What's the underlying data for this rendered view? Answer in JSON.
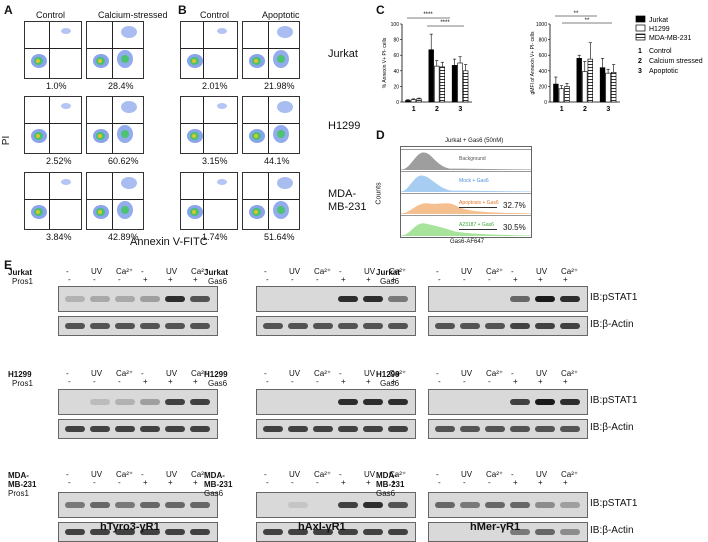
{
  "panel_letters": {
    "a": "A",
    "b": "B",
    "c": "C",
    "d": "D",
    "e": "E"
  },
  "panel_a": {
    "col_headers": [
      "Control",
      "Calcium-stressed"
    ],
    "percents": [
      [
        "1.0%",
        "28.4%"
      ],
      [
        "2.52%",
        "60.62%"
      ],
      [
        "3.84%",
        "42.89%"
      ]
    ]
  },
  "panel_b": {
    "col_headers": [
      "Control",
      "Apoptotic"
    ],
    "percents": [
      [
        "2.01%",
        "21.98%"
      ],
      [
        "3.15%",
        "44.1%"
      ],
      [
        "1.74%",
        "51.64%"
      ]
    ]
  },
  "cell_lines": [
    "Jurkat",
    "H1299",
    "MDA-\nMB-231"
  ],
  "axis": {
    "flow_y": "PI",
    "flow_x": "Annexin V-FITC"
  },
  "panel_c": {
    "left_ylabel": "% Annexin V+ PI- cells",
    "right_ylabel": "gMFI of Annexin V+ PI- cells",
    "sig_left": [
      "****",
      "****"
    ],
    "sig_right": [
      "**",
      "**"
    ],
    "legend": [
      {
        "name": "Jurkat",
        "color": "#000000"
      },
      {
        "name": "H1299",
        "color": "#ffffff"
      },
      {
        "name": "MDA-MB-231",
        "color": "#ffffff",
        "hatch": true
      }
    ],
    "conditions": [
      {
        "num": "1",
        "name": "Control"
      },
      {
        "num": "2",
        "name": "Calcium stressed"
      },
      {
        "num": "3",
        "name": "Apoptotic"
      }
    ]
  },
  "chart_data": [
    {
      "type": "bar",
      "categories": [
        "1",
        "2",
        "3"
      ],
      "series": [
        {
          "name": "Jurkat",
          "values": [
            2,
            67,
            47
          ]
        },
        {
          "name": "H1299",
          "values": [
            3,
            46,
            50
          ]
        },
        {
          "name": "MDA-MB-231",
          "values": [
            4,
            45,
            40
          ]
        }
      ],
      "errors": [
        [
          1,
          20,
          8
        ],
        [
          1,
          7,
          8
        ],
        [
          1,
          6,
          8
        ]
      ],
      "ylabel": "% Annexin V+ PI- cells",
      "ylim": [
        0,
        100
      ],
      "yticks": [
        0,
        20,
        40,
        60,
        80,
        100
      ]
    },
    {
      "type": "bar",
      "categories": [
        "1",
        "2",
        "3"
      ],
      "series": [
        {
          "name": "Jurkat",
          "values": [
            230,
            560,
            440
          ]
        },
        {
          "name": "H1299",
          "values": [
            170,
            390,
            370
          ]
        },
        {
          "name": "MDA-MB-231",
          "values": [
            200,
            550,
            380
          ]
        }
      ],
      "errors": [
        [
          90,
          40,
          120
        ],
        [
          40,
          130,
          50
        ],
        [
          40,
          210,
          100
        ]
      ],
      "ylabel": "gMFI of Annexin V+ PI- cells",
      "ylim": [
        0,
        1000
      ],
      "yticks": [
        0,
        200,
        400,
        600,
        800,
        1000
      ]
    }
  ],
  "panel_d": {
    "title": "Jurkat + Gas6 (50nM)",
    "ylabel": "Counts",
    "xlabel": "Gas6-AF647",
    "tracks": [
      {
        "label": "Background",
        "color": "#9e9e9e",
        "label_color": "#555555",
        "pct": ""
      },
      {
        "label": "Mock + Gas6",
        "color": "#a7cdf2",
        "label_color": "#4a90d9",
        "pct": ""
      },
      {
        "label": "Apoptosis + Gas6",
        "color": "#f5c08f",
        "label_color": "#e0772b",
        "pct": "32.7%"
      },
      {
        "label": "A23187 + Gas6",
        "color": "#a7e39a",
        "label_color": "#3aa832",
        "pct": "30.5%"
      }
    ]
  },
  "panel_e": {
    "treatments": [
      "-",
      "UV",
      "Ca²⁺",
      "-",
      "UV",
      "Ca²⁺"
    ],
    "ligand_row": [
      "-",
      "-",
      "-",
      "+",
      "+",
      "+"
    ],
    "groups": [
      {
        "ligand": "Pros1",
        "title": "hTyro3-γR1"
      },
      {
        "ligand": "Gas6",
        "title": "hAxl-γR1"
      },
      {
        "ligand": "Gas6",
        "title": "hMer-γR1"
      }
    ],
    "ib_labels": [
      "IB:pSTAT1",
      "IB:β-Actin"
    ]
  }
}
